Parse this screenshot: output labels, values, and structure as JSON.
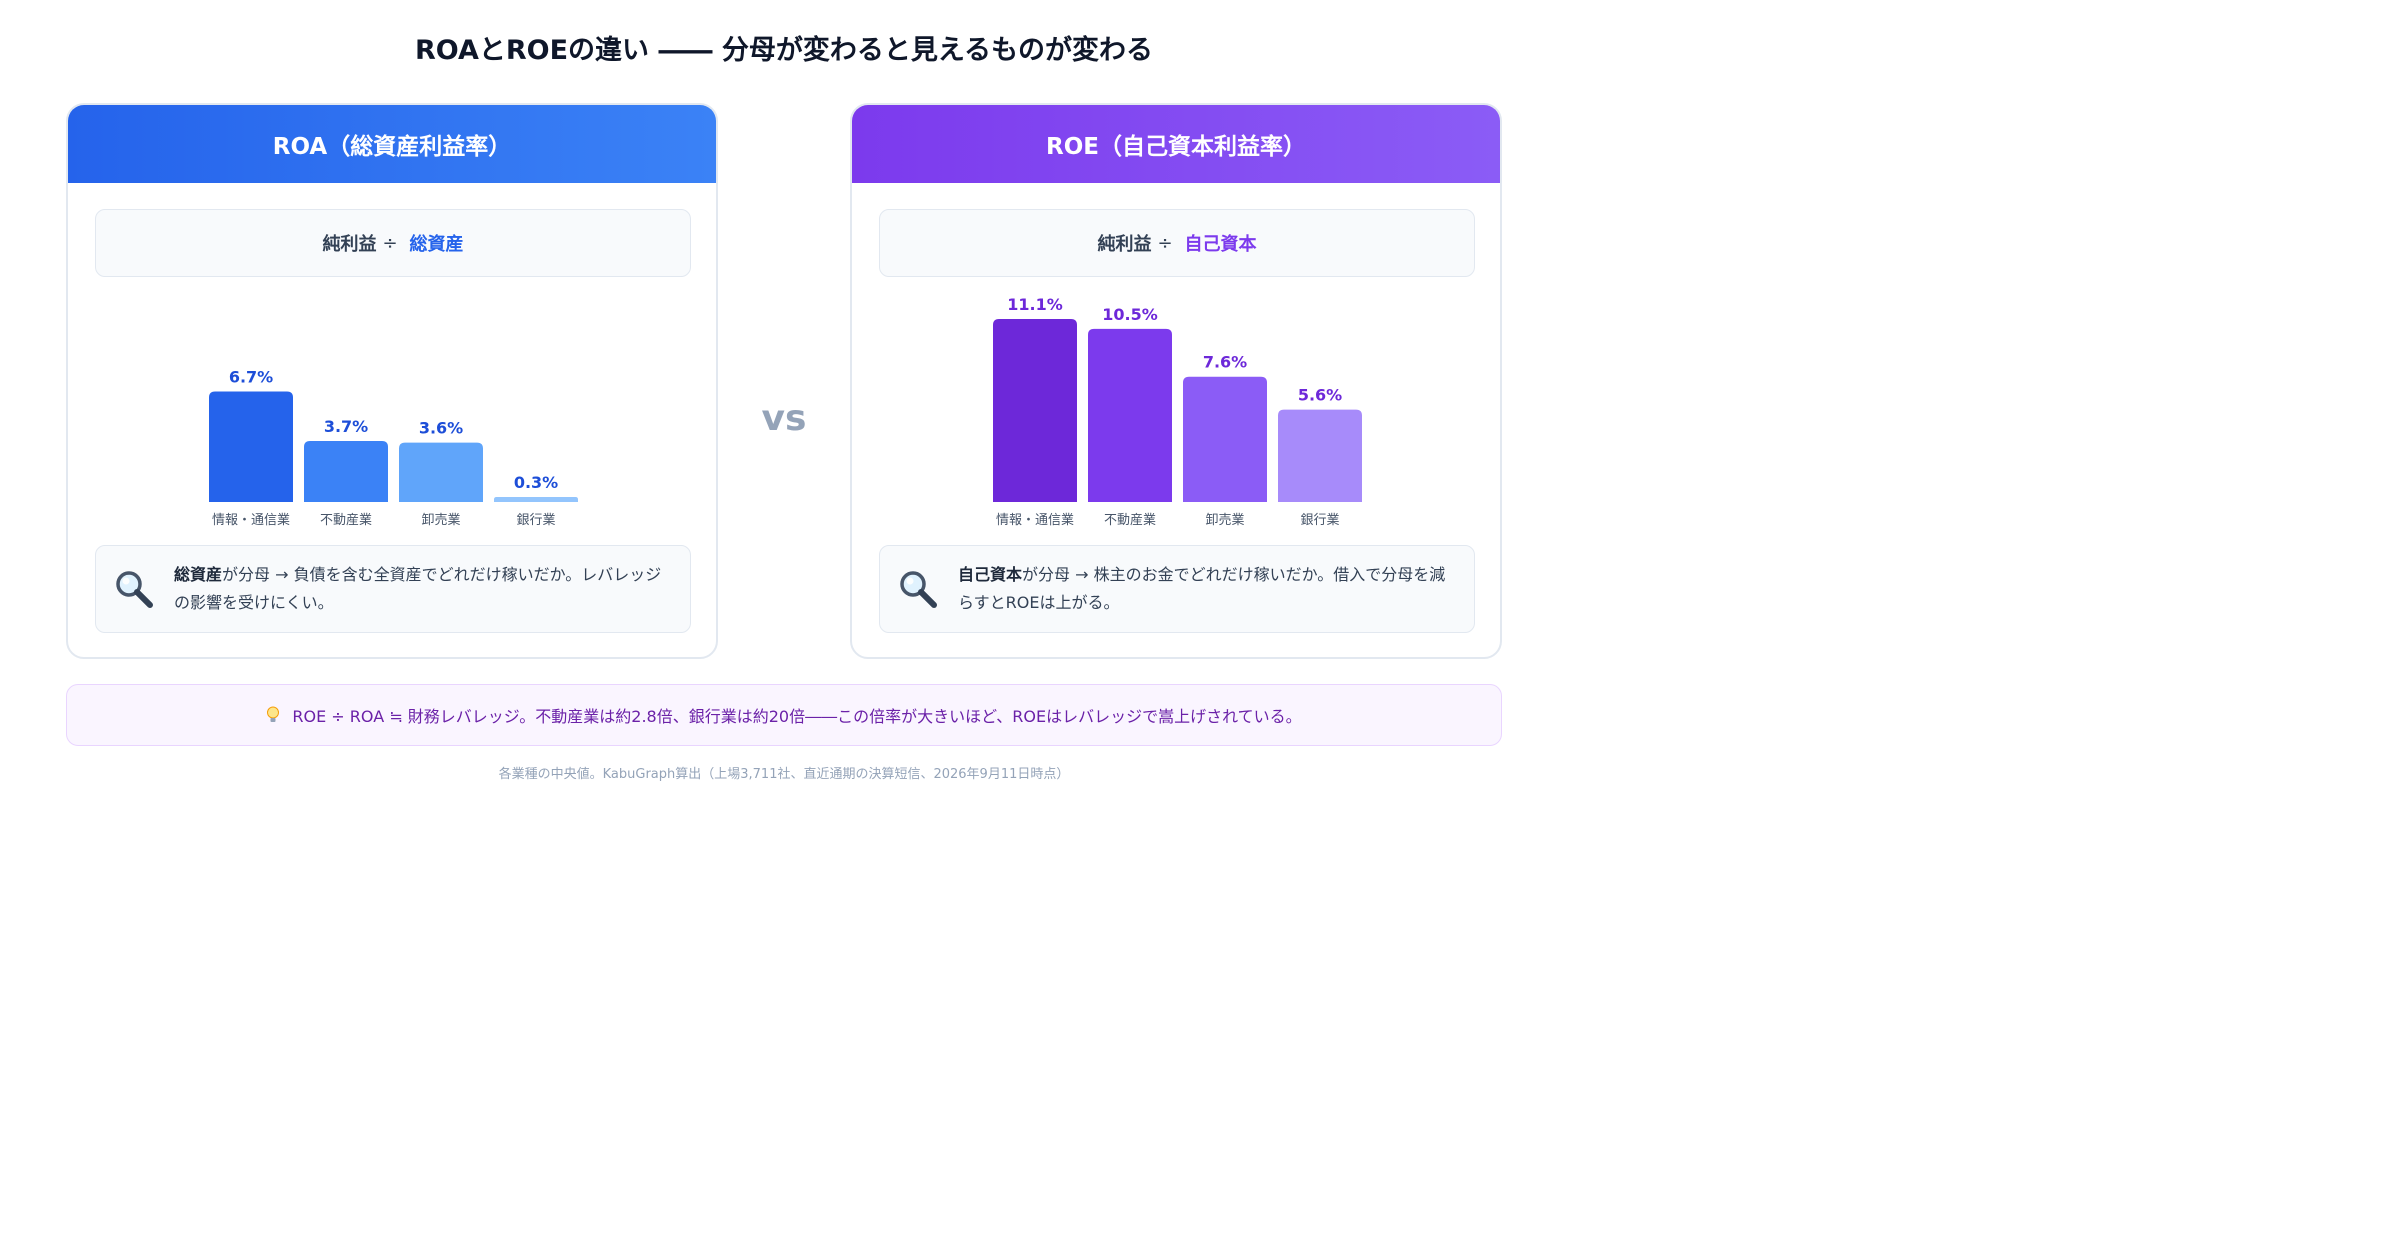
{
  "title": "ROAとROEの違い ―― 分母が変わると見えるものが変わる",
  "vs_label": "vs",
  "roa": {
    "header": "ROA（総資産利益率）",
    "formula_left": "純利益",
    "formula_op": "÷",
    "formula_denominator": "総資産",
    "note_bold": "総資産",
    "note_text": "が分母 → 負債を含む全資産でどれだけ稼いだか。レバレッジの影響を受けにくい。",
    "note_icon": "magnifier-icon"
  },
  "roe": {
    "header": "ROE（自己資本利益率）",
    "formula_left": "純利益",
    "formula_op": "÷",
    "formula_denominator": "自己資本",
    "note_bold": "自己資本",
    "note_text": "が分母 → 株主のお金でどれだけ稼いだか。借入で分母を減らすとROEは上がる。",
    "note_icon": "magnifier-icon"
  },
  "banner": {
    "icon": "lightbulb-icon",
    "text": "ROE ÷ ROA ≒ 財務レバレッジ。不動産業は約2.8倍、銀行業は約20倍――この倍率が大きいほど、ROEはレバレッジで嵩上げされている。"
  },
  "footer": "各業種の中央値。KabuGraph算出（上場3,711社、直近通期の決算短信、2026年9月11日時点）",
  "chart_data": [
    {
      "type": "bar",
      "id": "roa",
      "categories": [
        "情報・通信業",
        "不動産業",
        "卸売業",
        "銀行業"
      ],
      "values": [
        6.7,
        3.7,
        3.6,
        0.3
      ],
      "labels": [
        "6.7%",
        "3.7%",
        "3.6%",
        "0.3%"
      ],
      "unit": "%",
      "ylim": [
        0,
        11.1
      ],
      "colors": [
        "#2563eb",
        "#3b82f6",
        "#60a5fa",
        "#93c5fd"
      ],
      "label_color": "#1d4ed8"
    },
    {
      "type": "bar",
      "id": "roe",
      "categories": [
        "情報・通信業",
        "不動産業",
        "卸売業",
        "銀行業"
      ],
      "values": [
        11.1,
        10.5,
        7.6,
        5.6
      ],
      "labels": [
        "11.1%",
        "10.5%",
        "7.6%",
        "5.6%"
      ],
      "unit": "%",
      "ylim": [
        0,
        11.1
      ],
      "colors": [
        "#6d28d9",
        "#7c3aed",
        "#8b5cf6",
        "#a78bfa"
      ],
      "label_color": "#6d28d9"
    }
  ]
}
